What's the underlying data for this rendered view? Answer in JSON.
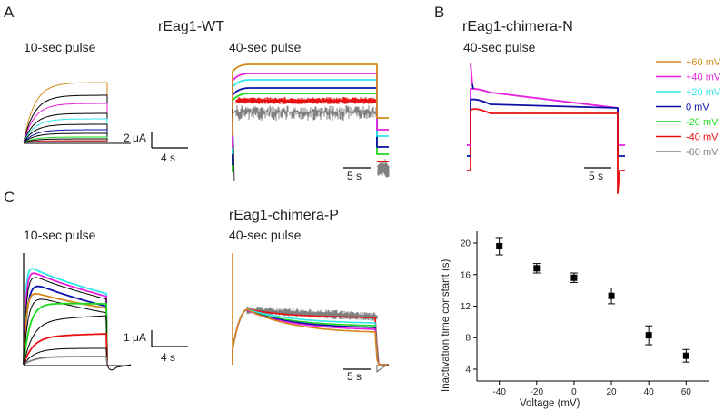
{
  "colors": {
    "+60 mV": "#d4891a",
    "+40 mV": "#e81ee0",
    "+20 mV": "#2de8e8",
    "0 mV": "#0a10a8",
    "-20 mV": "#1ed81e",
    "-40 mV": "#e81010",
    "-60 mV": "#808080",
    "black": "#000000"
  },
  "panels": {
    "A": {
      "letter": "A",
      "title": "rEag1-WT",
      "left_label": "10-sec pulse",
      "right_label": "40-sec pulse",
      "scale_y": "2 μA",
      "scale_x_left": "4 s",
      "scale_x_right": "5 s"
    },
    "B": {
      "letter": "B",
      "title": "rEag1-chimera-N",
      "label": "40-sec pulse",
      "scale_x": "5 s"
    },
    "C": {
      "letter": "C",
      "title": "rEag1-chimera-P",
      "left_label": "10-sec pulse",
      "right_label": "40-sec pulse",
      "scale_y": "1 μA",
      "scale_x_left": "4 s",
      "scale_x_right": "5 s"
    }
  },
  "legend": [
    {
      "label": "+60 mV",
      "color": "#d4891a"
    },
    {
      "label": "+40 mV",
      "color": "#e81ee0"
    },
    {
      "label": "+20 mV",
      "color": "#2de8e8"
    },
    {
      "label": "0 mV",
      "color": "#0a10a8"
    },
    {
      "label": "-20 mV",
      "color": "#1ed81e"
    },
    {
      "label": "-40 mV",
      "color": "#e81010"
    },
    {
      "label": "-60 mV",
      "color": "#808080"
    }
  ],
  "chart_data": [
    {
      "type": "scatter",
      "title": "",
      "xlabel": "Voltage (mV)",
      "ylabel": "Inactivation time constant (s)",
      "x": [
        -40,
        -20,
        0,
        20,
        40,
        60
      ],
      "y": [
        19.6,
        16.8,
        15.6,
        13.3,
        8.3,
        5.7
      ],
      "error": [
        1.1,
        0.6,
        0.6,
        1.0,
        1.2,
        0.8
      ],
      "xticks": [
        "-40",
        "-20",
        "0",
        "20",
        "40",
        "60"
      ],
      "yticks": [
        "4",
        "8",
        "12",
        "16",
        "20"
      ],
      "xlim": [
        -52,
        72
      ],
      "ylim": [
        2.5,
        21.5
      ],
      "grid": false,
      "marker": "square"
    }
  ]
}
